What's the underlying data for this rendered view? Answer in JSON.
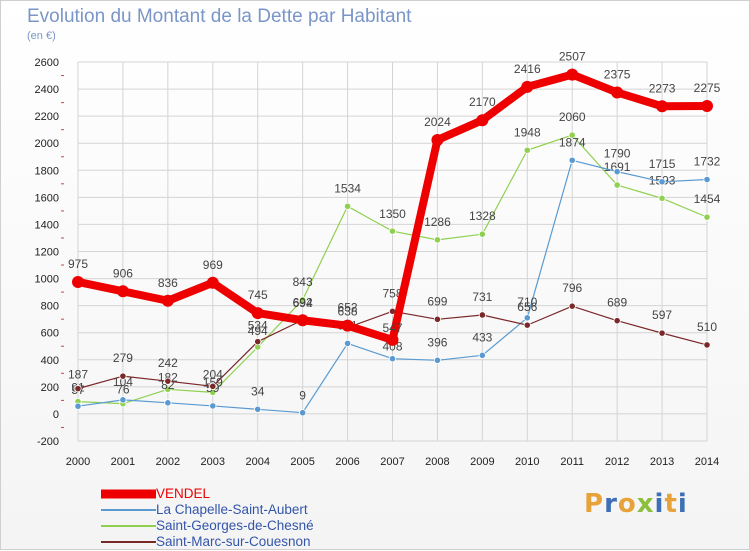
{
  "title": "Evolution du Montant de la Dette par Habitant",
  "subtitle": "(en €)",
  "logo_text": "Proxiti",
  "colors": {
    "title": "#7a96c8",
    "grid": "#d4d4d4",
    "logo": [
      "#e8a23a",
      "#3d6fb6",
      "#e8a23a",
      "#8bbf3c",
      "#3d6fb6",
      "#e8a23a",
      "#3d6fb6"
    ]
  },
  "chart_data": {
    "type": "line",
    "title": "Evolution du Montant de la Dette par Habitant",
    "subtitle": "(en €)",
    "x": [
      "2000",
      "2001",
      "2002",
      "2003",
      "2004",
      "2005",
      "2006",
      "2007",
      "2008",
      "2009",
      "2010",
      "2011",
      "2012",
      "2013",
      "2014"
    ],
    "yticks": [
      "-200",
      "0",
      "200",
      "400",
      "600",
      "800",
      "1000",
      "1200",
      "1400",
      "1600",
      "1800",
      "2000",
      "2200",
      "2400",
      "2600"
    ],
    "ylim": [
      -200,
      2600
    ],
    "grid": true,
    "legend_position": "bottom-left",
    "series": [
      {
        "name": "VENDEL",
        "color": "#ee0000",
        "values": [
          975,
          906,
          836,
          969,
          745,
          692,
          652,
          547,
          2024,
          2170,
          2416,
          2507,
          2375,
          2273,
          2275
        ]
      },
      {
        "name": "La Chapelle-Saint-Aubert",
        "color": "#5a9ad0",
        "values": [
          57,
          104,
          82,
          59,
          34,
          9,
          521,
          408,
          396,
          433,
          710,
          1874,
          1790,
          1715,
          1732
        ]
      },
      {
        "name": "Saint-Georges-de-Chesné",
        "color": "#90d050",
        "values": [
          91,
          76,
          182,
          159,
          494,
          843,
          1534,
          1350,
          1286,
          1328,
          1948,
          2060,
          1691,
          1593,
          1454
        ]
      },
      {
        "name": "Saint-Marc-sur-Couesnon",
        "color": "#7a2828",
        "values": [
          187,
          279,
          242,
          204,
          534,
          694,
          638,
          758,
          699,
          731,
          656,
          796,
          689,
          597,
          510
        ]
      }
    ]
  }
}
